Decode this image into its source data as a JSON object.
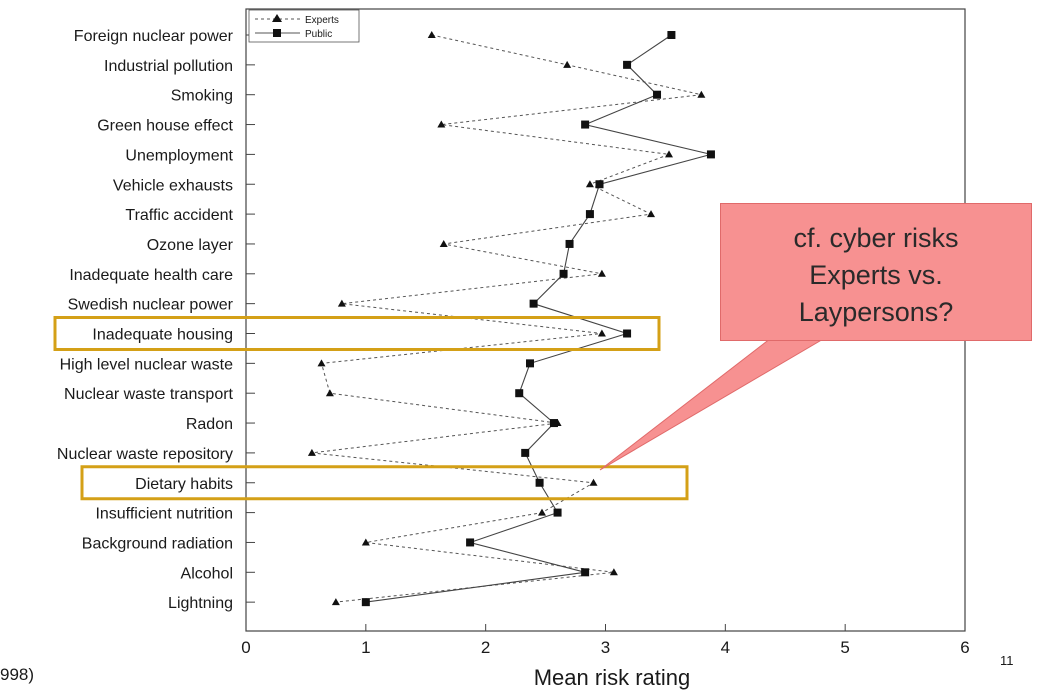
{
  "slide": {
    "page_number": "11",
    "source_fragment": "998)"
  },
  "callout": {
    "lines": [
      "cf. cyber risks",
      "Experts vs.",
      "Laypersons?"
    ],
    "fill": "#f79191"
  },
  "highlight": {
    "color": "#d4a017",
    "categories": [
      "Inadequate housing",
      "Dietary habits"
    ]
  },
  "chart_data": {
    "type": "line",
    "orientation": "horizontal",
    "xlabel": "Mean risk rating",
    "xlim": [
      0,
      6
    ],
    "xticks": [
      0,
      1,
      2,
      3,
      4,
      5,
      6
    ],
    "grid": false,
    "legend_position": "top-left",
    "categories": [
      "Foreign nuclear power",
      "Industrial pollution",
      "Smoking",
      "Green house effect",
      "Unemployment",
      "Vehicle exhausts",
      "Traffic accident",
      "Ozone layer",
      "Inadequate health care",
      "Swedish nuclear power",
      "Inadequate housing",
      "High level nuclear waste",
      "Nuclear waste transport",
      "Radon",
      "Nuclear waste repository",
      "Dietary habits",
      "Insufficient nutrition",
      "Background radiation",
      "Alcohol",
      "Lightning"
    ],
    "series": [
      {
        "name": "Experts",
        "marker": "triangle",
        "line": "dashed",
        "values": [
          1.55,
          2.68,
          3.8,
          1.63,
          3.53,
          2.87,
          3.38,
          1.65,
          2.97,
          0.8,
          2.97,
          0.63,
          0.7,
          2.6,
          0.55,
          2.9,
          2.47,
          1.0,
          3.07,
          0.75
        ]
      },
      {
        "name": "Public",
        "marker": "square",
        "line": "solid",
        "values": [
          3.55,
          3.18,
          3.43,
          2.83,
          3.88,
          2.95,
          2.87,
          2.7,
          2.65,
          2.4,
          3.18,
          2.37,
          2.28,
          2.57,
          2.33,
          2.45,
          2.6,
          1.87,
          2.83,
          1.0
        ]
      }
    ]
  }
}
